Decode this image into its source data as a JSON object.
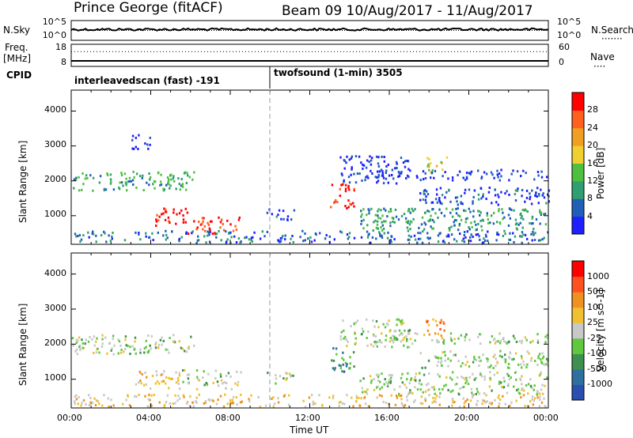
{
  "header": {
    "station": "Prince George (fitACF)",
    "beam_date": "Beam 09  10/Aug/2017 - 11/Aug/2017"
  },
  "left_labels": {
    "nsky": "N.Sky",
    "freq_line1": "Freq.",
    "freq_line2": "[MHz]",
    "cpid": "CPID"
  },
  "right_labels": {
    "nsearch": "N.Search",
    "nave": "Nave"
  },
  "cpid_segments": [
    {
      "label": "interleavedscan (fast) -191",
      "start_hour": 0
    },
    {
      "label": "twofsound (1-min) 3505",
      "start_hour": 10
    }
  ],
  "colors": {
    "bg": "#ffffff",
    "axis": "#000000",
    "dash": "#9a9a9a"
  },
  "chart_data": [
    {
      "type": "line",
      "panel": "noise",
      "ylabel_left": "N.Sky",
      "ylabel_right": "N.Search",
      "yticks_left": [
        "10^5",
        "10^0"
      ],
      "yticks_right": [
        "10^5",
        "10^0"
      ],
      "xlim": [
        0,
        24
      ],
      "series": [
        {
          "name": "N.Sky",
          "style": "solid",
          "level_fraction": 0.55
        },
        {
          "name": "N.Search",
          "style": "dotted",
          "level_fraction": 0.5
        }
      ]
    },
    {
      "type": "line",
      "panel": "frequency",
      "ylabel_left": "Freq. [MHz]",
      "ylabel_right": "Nave",
      "yticks_left": [
        "18",
        "8"
      ],
      "yticks_right": [
        "60",
        "0"
      ],
      "ylim_left": [
        8,
        18
      ],
      "ylim_right": [
        0,
        60
      ],
      "xlim": [
        0,
        24
      ],
      "series": [
        {
          "name": "Freq.",
          "style": "solid",
          "value": 10.5
        },
        {
          "name": "Nave",
          "style": "dotted",
          "value": 40
        }
      ]
    },
    {
      "type": "heatmap",
      "panel": "power",
      "ylabel": "Slant Range [km]",
      "yticks": [
        "1000",
        "2000",
        "3000",
        "4000"
      ],
      "ylim": [
        180,
        4600
      ],
      "xlim": [
        0,
        24
      ],
      "colorbar_label": "Power [dB]",
      "colorbar_ticks": [
        "4",
        "8",
        "12",
        "16",
        "20",
        "24",
        "28"
      ],
      "colorbar_colors": [
        "#1f1fff",
        "#1f5fb8",
        "#2f9f6f",
        "#4fbf3f",
        "#f0d030",
        "#f0a020",
        "#ff6020",
        "#ff0000"
      ],
      "regions": [
        {
          "t0": 0.0,
          "t1": 6.2,
          "r0": 1700,
          "r1": 2250,
          "level": 0.35
        },
        {
          "t0": 4.2,
          "t1": 6.0,
          "r0": 700,
          "r1": 1250,
          "level": 0.95
        },
        {
          "t0": 5.8,
          "t1": 8.5,
          "r0": 450,
          "r1": 950,
          "level": 0.9
        },
        {
          "t0": 0.0,
          "t1": 24.0,
          "r0": 200,
          "r1": 550,
          "level": 0.2
        },
        {
          "t0": 9.8,
          "t1": 11.2,
          "r0": 850,
          "r1": 1200,
          "level": 0.15
        },
        {
          "t0": 13.0,
          "t1": 14.2,
          "r0": 1200,
          "r1": 1900,
          "level": 0.9
        },
        {
          "t0": 14.5,
          "t1": 24.0,
          "r0": 550,
          "r1": 1200,
          "level": 0.3
        },
        {
          "t0": 17.5,
          "t1": 24.0,
          "r0": 1300,
          "r1": 1800,
          "level": 0.15
        },
        {
          "t0": 13.5,
          "t1": 17.0,
          "r0": 1900,
          "r1": 2700,
          "level": 0.1
        },
        {
          "t0": 17.8,
          "t1": 19.0,
          "r0": 2200,
          "r1": 2700,
          "level": 0.55
        },
        {
          "t0": 3.0,
          "t1": 4.0,
          "r0": 2900,
          "r1": 3300,
          "level": 0.05
        },
        {
          "t0": 15.0,
          "t1": 24.0,
          "r0": 2000,
          "r1": 2300,
          "level": 0.1
        }
      ]
    },
    {
      "type": "heatmap",
      "panel": "velocity",
      "ylabel": "Slant Range [km]",
      "yticks": [
        "1000",
        "2000",
        "3000",
        "4000"
      ],
      "ylim": [
        180,
        4600
      ],
      "xlim": [
        0,
        24
      ],
      "xticks": [
        "00:00",
        "04:00",
        "08:00",
        "12:00",
        "16:00",
        "20:00",
        "00:00"
      ],
      "xlabel": "Time UT",
      "colorbar_label": "Velocity [m s^-1]",
      "colorbar_ticks": [
        "1000",
        "500",
        "100",
        "25",
        "-25",
        "-100",
        "-500",
        "-1000"
      ],
      "colorbar_colors": [
        "#2a4fb0",
        "#2f6f9f",
        "#3f8f4f",
        "#5fc83f",
        "#c8c8c8",
        "#f0c030",
        "#f09020",
        "#ff5020",
        "#ff0000"
      ],
      "regions": [
        {
          "t0": 0.0,
          "t1": 6.2,
          "r0": 1700,
          "r1": 2250,
          "level": 0.45
        },
        {
          "t0": 3.2,
          "t1": 5.5,
          "r0": 700,
          "r1": 1250,
          "level": 0.6
        },
        {
          "t0": 5.5,
          "t1": 8.5,
          "r0": 700,
          "r1": 1250,
          "level": 0.45
        },
        {
          "t0": 0.0,
          "t1": 24.0,
          "r0": 200,
          "r1": 550,
          "level": 0.6
        },
        {
          "t0": 9.8,
          "t1": 11.2,
          "r0": 850,
          "r1": 1200,
          "level": 0.45
        },
        {
          "t0": 13.0,
          "t1": 14.2,
          "r0": 1200,
          "r1": 1900,
          "level": 0.25
        },
        {
          "t0": 14.5,
          "t1": 24.0,
          "r0": 550,
          "r1": 1200,
          "level": 0.45
        },
        {
          "t0": 17.5,
          "t1": 24.0,
          "r0": 1300,
          "r1": 1800,
          "level": 0.45
        },
        {
          "t0": 13.5,
          "t1": 17.0,
          "r0": 1900,
          "r1": 2700,
          "level": 0.45
        },
        {
          "t0": 17.8,
          "t1": 19.0,
          "r0": 2200,
          "r1": 2700,
          "level": 0.75
        },
        {
          "t0": 15.0,
          "t1": 24.0,
          "r0": 2000,
          "r1": 2300,
          "level": 0.45
        }
      ]
    }
  ]
}
